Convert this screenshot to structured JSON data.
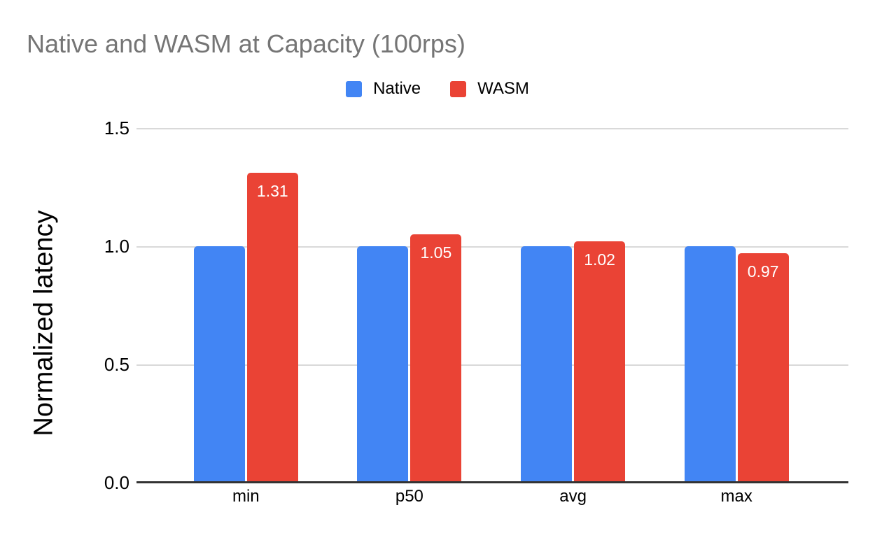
{
  "title": "Native and WASM at Capacity (100rps)",
  "chart_data": {
    "type": "bar",
    "title": "Native and WASM at Capacity (100rps)",
    "categories": [
      "min",
      "p50",
      "avg",
      "max"
    ],
    "series": [
      {
        "name": "Native",
        "color": "#4285f4",
        "values": [
          1.0,
          1.0,
          1.0,
          1.0
        ],
        "labels": [
          "",
          "",
          "",
          ""
        ]
      },
      {
        "name": "WASM",
        "color": "#ea4335",
        "values": [
          1.31,
          1.05,
          1.02,
          0.97
        ],
        "labels": [
          "1.31",
          "1.05",
          "1.02",
          "0.97"
        ]
      }
    ],
    "xlabel": "",
    "ylabel": "Normalized latency",
    "ylim": [
      0,
      1.5
    ],
    "y_ticks": [
      "0.0",
      "0.5",
      "1.0",
      "1.5"
    ],
    "grid": true,
    "legend_position": "top",
    "bar_label_color": "#ffffff",
    "title_color": "#757575",
    "gridline_color": "#d9d9d9",
    "axis_line_color": "#333333"
  }
}
